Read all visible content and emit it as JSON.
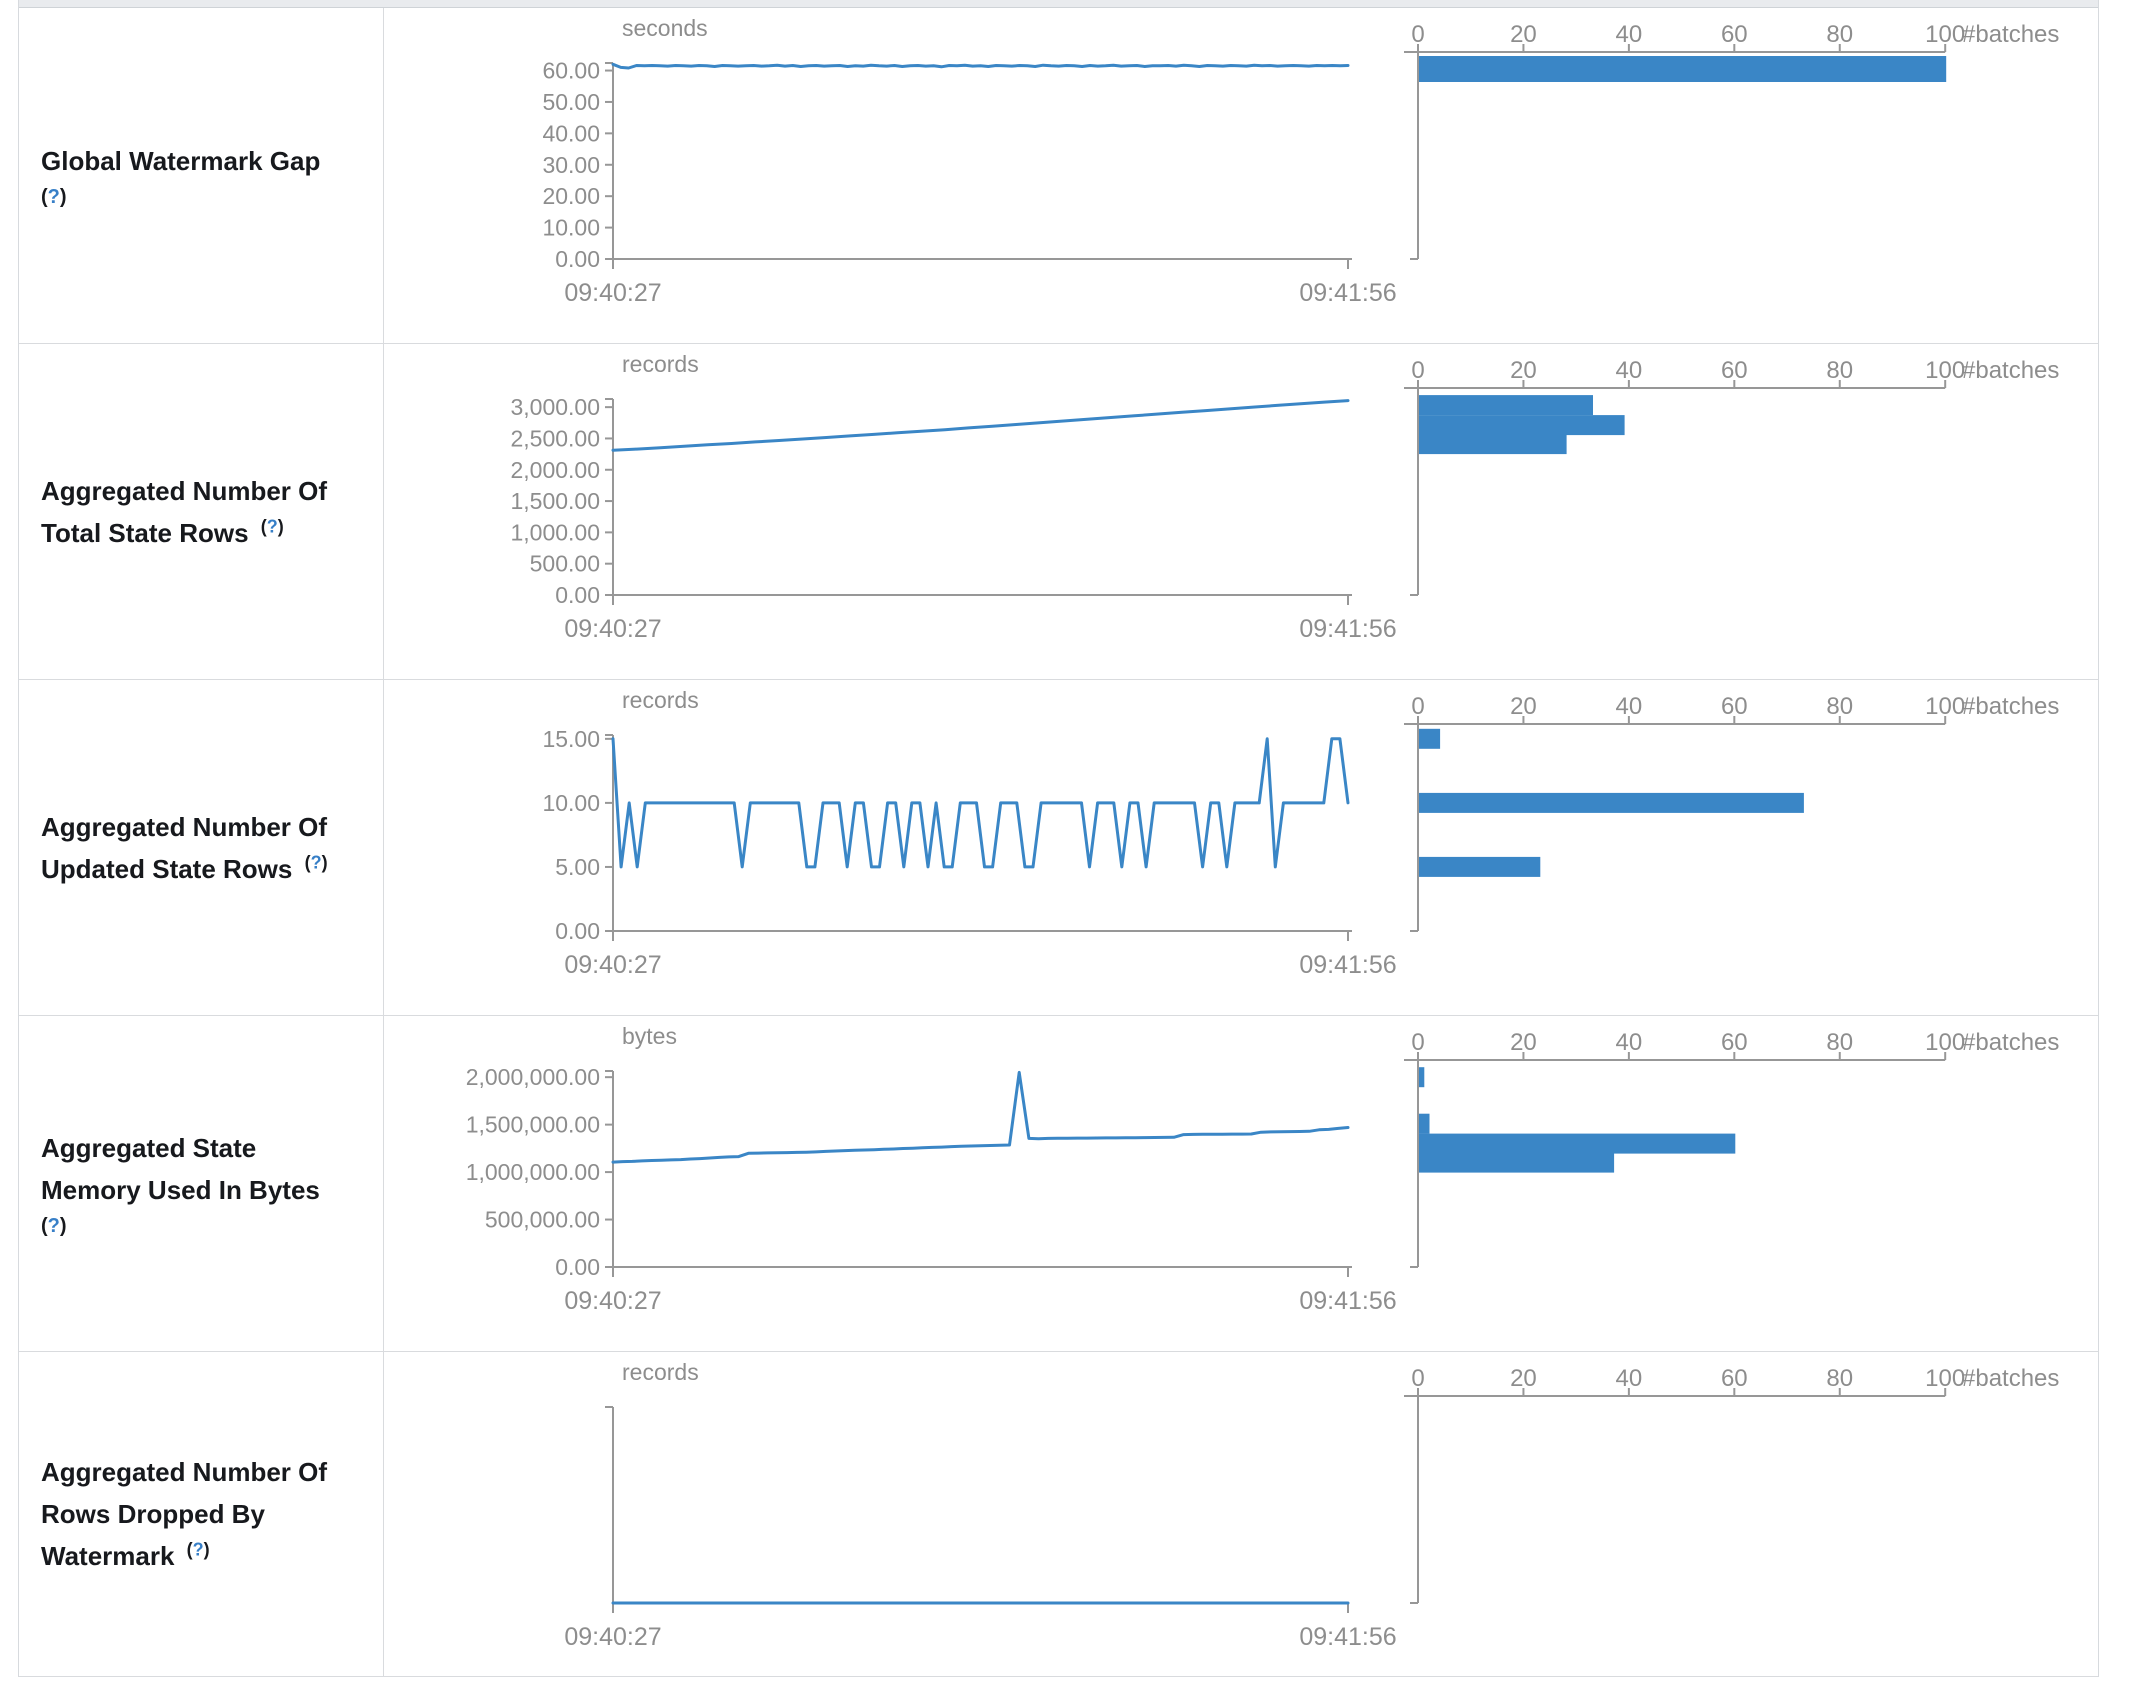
{
  "page": {
    "x_start_label": "09:40:27",
    "x_end_label": "09:41:56",
    "batches_axis_label": "#batches",
    "help_label_open": "(",
    "help_label_q": "?",
    "help_label_close": ")",
    "accent_color": "#3a86c6",
    "axis_color": "#979797",
    "tick_text_color": "#8d8d8d"
  },
  "chart_data": [
    {
      "id": "global-watermark-gap",
      "title": "Global Watermark Gap",
      "help_block": true,
      "timeline": {
        "type": "line",
        "unit": "seconds",
        "x_ticks": [
          "09:40:27",
          "09:41:56"
        ],
        "y_ticks": [
          [
            "60.00",
            60
          ],
          [
            "50.00",
            50
          ],
          [
            "40.00",
            40
          ],
          [
            "30.00",
            30
          ],
          [
            "20.00",
            20
          ],
          [
            "10.00",
            10
          ],
          [
            "0.00",
            0
          ]
        ],
        "y_axis_max": 62.4,
        "values": [
          62.0,
          61.0,
          60.8,
          61.6,
          61.5,
          61.6,
          61.5,
          61.4,
          61.6,
          61.5,
          61.4,
          61.6,
          61.5,
          61.3,
          61.6,
          61.5,
          61.4,
          61.5,
          61.6,
          61.4,
          61.5,
          61.7,
          61.4,
          61.6,
          61.3,
          61.5,
          61.6,
          61.4,
          61.5,
          61.6,
          61.3,
          61.5,
          61.4,
          61.7,
          61.5,
          61.4,
          61.6,
          61.3,
          61.5,
          61.6,
          61.4,
          61.5,
          61.2,
          61.6,
          61.5,
          61.7,
          61.4,
          61.5,
          61.3,
          61.6,
          61.5,
          61.4,
          61.6,
          61.5,
          61.3,
          61.7,
          61.5,
          61.4,
          61.6,
          61.5,
          61.3,
          61.6,
          61.4,
          61.5,
          61.7,
          61.4,
          61.5,
          61.6,
          61.3,
          61.5,
          61.5,
          61.6,
          61.4,
          61.7,
          61.5,
          61.3,
          61.6,
          61.5,
          61.4,
          61.6,
          61.5,
          61.4,
          61.7,
          61.5,
          61.6,
          61.4,
          61.5,
          61.6,
          61.5,
          61.4,
          61.6,
          61.5,
          61.6,
          61.5,
          61.6
        ]
      },
      "histogram": {
        "type": "bar",
        "unit": "#batches",
        "x_ticks": [
          0,
          20,
          40,
          60,
          80,
          100
        ],
        "x_max": 100,
        "bars": [
          {
            "count": 100,
            "level": 60.5,
            "tall": true
          }
        ]
      }
    },
    {
      "id": "aggregated-total-state-rows",
      "title": "Aggregated Number Of Total State Rows",
      "help_block": false,
      "timeline": {
        "type": "line",
        "unit": "records",
        "x_ticks": [
          "09:40:27",
          "09:41:56"
        ],
        "y_ticks": [
          [
            "3,000.00",
            3000
          ],
          [
            "2,500.00",
            2500
          ],
          [
            "2,000.00",
            2000
          ],
          [
            "1,500.00",
            1500
          ],
          [
            "1,000.00",
            1000
          ],
          [
            "500.00",
            500
          ],
          [
            "0.00",
            0
          ]
        ],
        "y_axis_max": 3130,
        "values": [
          2313,
          2330,
          2352,
          2375,
          2398,
          2420,
          2445,
          2468,
          2492,
          2515,
          2540,
          2565,
          2590,
          2615,
          2640,
          2668,
          2695,
          2722,
          2750,
          2778,
          2806,
          2835,
          2862,
          2890,
          2918,
          2945,
          2972,
          3000,
          3028,
          3055,
          3080,
          3105
        ]
      },
      "histogram": {
        "type": "bar",
        "unit": "#batches",
        "x_ticks": [
          0,
          20,
          40,
          60,
          80,
          100
        ],
        "x_max": 100,
        "bars": [
          {
            "count": 33,
            "level": 3032
          },
          {
            "count": 39,
            "level": 2713
          },
          {
            "count": 28,
            "level": 2410
          }
        ]
      }
    },
    {
      "id": "aggregated-updated-state-rows",
      "title": "Aggregated Number Of Updated State Rows",
      "help_block": false,
      "timeline": {
        "type": "line",
        "unit": "records",
        "x_ticks": [
          "09:40:27",
          "09:41:56"
        ],
        "y_ticks": [
          [
            "15.00",
            15
          ],
          [
            "10.00",
            10
          ],
          [
            "5.00",
            5
          ],
          [
            "0.00",
            0
          ]
        ],
        "y_axis_max": 15.3,
        "values": [
          15,
          5,
          10,
          5,
          10,
          10,
          10,
          10,
          10,
          10,
          10,
          10,
          10,
          10,
          10,
          10,
          5,
          10,
          10,
          10,
          10,
          10,
          10,
          10,
          5,
          5,
          10,
          10,
          10,
          5,
          10,
          10,
          5,
          5,
          10,
          10,
          5,
          10,
          10,
          5,
          10,
          5,
          5,
          10,
          10,
          10,
          5,
          5,
          10,
          10,
          10,
          5,
          5,
          10,
          10,
          10,
          10,
          10,
          10,
          5,
          10,
          10,
          10,
          5,
          10,
          10,
          5,
          10,
          10,
          10,
          10,
          10,
          10,
          5,
          10,
          10,
          5,
          10,
          10,
          10,
          10,
          15,
          5,
          10,
          10,
          10,
          10,
          10,
          10,
          15,
          15,
          10
        ]
      },
      "histogram": {
        "type": "bar",
        "unit": "#batches",
        "x_ticks": [
          0,
          20,
          40,
          60,
          80,
          100
        ],
        "x_max": 100,
        "bars": [
          {
            "count": 4,
            "level": 15
          },
          {
            "count": 73,
            "level": 10
          },
          {
            "count": 23,
            "level": 5
          }
        ]
      }
    },
    {
      "id": "aggregated-state-memory-used",
      "title": "Aggregated State Memory Used In Bytes",
      "help_block": true,
      "timeline": {
        "type": "line",
        "unit": "bytes",
        "x_ticks": [
          "09:40:27",
          "09:41:56"
        ],
        "y_ticks": [
          [
            "2,000,000.00",
            2000000
          ],
          [
            "1,500,000.00",
            1500000
          ],
          [
            "1,000,000.00",
            1000000
          ],
          [
            "500,000.00",
            500000
          ],
          [
            "0.00",
            0
          ]
        ],
        "y_axis_max": 2065000,
        "values": [
          1105000,
          1110000,
          1113000,
          1118000,
          1122000,
          1125000,
          1128000,
          1132000,
          1138000,
          1142000,
          1148000,
          1155000,
          1160000,
          1163000,
          1198000,
          1200000,
          1202000,
          1203000,
          1205000,
          1207000,
          1210000,
          1213000,
          1218000,
          1222000,
          1226000,
          1230000,
          1233000,
          1236000,
          1240000,
          1243000,
          1248000,
          1252000,
          1256000,
          1260000,
          1263000,
          1268000,
          1272000,
          1275000,
          1278000,
          1280000,
          1283000,
          1285000,
          2050000,
          1355000,
          1352000,
          1355000,
          1356000,
          1357000,
          1358000,
          1358000,
          1359000,
          1360000,
          1360000,
          1361000,
          1362000,
          1363000,
          1364000,
          1365000,
          1366000,
          1395000,
          1397000,
          1398000,
          1398000,
          1399000,
          1400000,
          1400000,
          1401000,
          1420000,
          1423000,
          1425000,
          1427000,
          1428000,
          1430000,
          1445000,
          1450000,
          1460000,
          1470000
        ]
      },
      "histogram": {
        "type": "bar",
        "unit": "#batches",
        "x_ticks": [
          0,
          20,
          40,
          60,
          80,
          100
        ],
        "x_max": 100,
        "bars": [
          {
            "count": 1,
            "level": 2000000
          },
          {
            "count": 2,
            "level": 1510000
          },
          {
            "count": 60,
            "level": 1300000
          },
          {
            "count": 37,
            "level": 1100000
          }
        ]
      }
    },
    {
      "id": "aggregated-rows-dropped-by-watermark",
      "title": "Aggregated Number Of Rows Dropped By Watermark",
      "help_block": false,
      "timeline": {
        "type": "line",
        "unit": "records",
        "x_ticks": [
          "09:40:27",
          "09:41:56"
        ],
        "y_ticks": [],
        "y_axis_max": 1,
        "no_x_axis_line": true,
        "values": [
          0,
          0,
          0,
          0,
          0,
          0,
          0,
          0
        ]
      },
      "histogram": {
        "type": "bar",
        "unit": "#batches",
        "x_ticks": [
          0,
          20,
          40,
          60,
          80,
          100
        ],
        "x_max": 100,
        "bars": []
      }
    }
  ]
}
